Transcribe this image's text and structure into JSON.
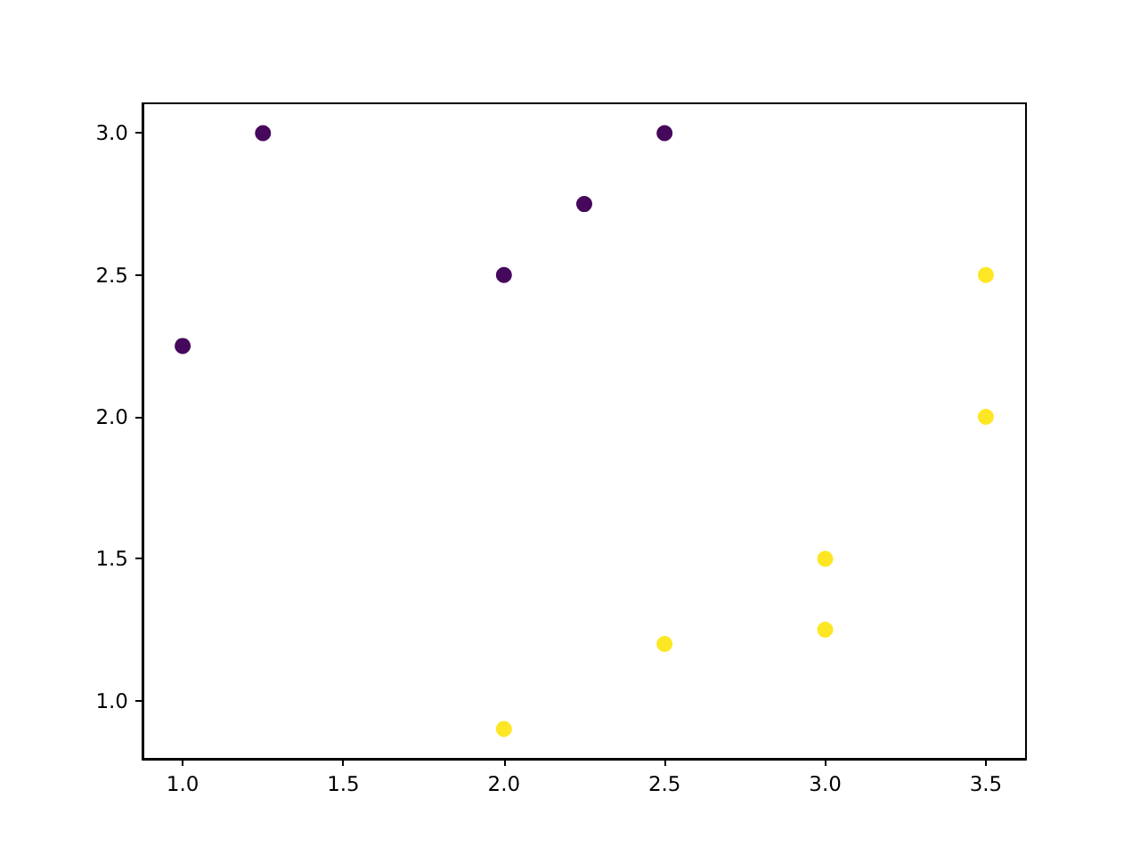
{
  "chart_data": {
    "type": "scatter",
    "series": [
      {
        "color": "#46085c",
        "x": [
          1.0,
          1.25,
          2.0,
          2.25,
          2.5
        ],
        "values": [
          2.25,
          3.0,
          2.5,
          2.75,
          3.0
        ]
      },
      {
        "color": "#fde725",
        "x": [
          2.0,
          2.5,
          3.0,
          3.0,
          3.5,
          3.5
        ],
        "values": [
          0.9,
          1.2,
          1.25,
          1.5,
          2.0,
          2.5
        ]
      }
    ],
    "xlim": [
      0.875,
      3.625
    ],
    "ylim": [
      0.795,
      3.105
    ],
    "xticks": [
      {
        "value": 1.0,
        "label": "1.0"
      },
      {
        "value": 1.5,
        "label": "1.5"
      },
      {
        "value": 2.0,
        "label": "2.0"
      },
      {
        "value": 2.5,
        "label": "2.5"
      },
      {
        "value": 3.0,
        "label": "3.0"
      },
      {
        "value": 3.5,
        "label": "3.5"
      }
    ],
    "yticks": [
      {
        "value": 1.0,
        "label": "1.0"
      },
      {
        "value": 1.5,
        "label": "1.5"
      },
      {
        "value": 2.0,
        "label": "2.0"
      },
      {
        "value": 2.5,
        "label": "2.5"
      },
      {
        "value": 3.0,
        "label": "3.0"
      }
    ],
    "marker": "circle",
    "grid": false
  }
}
